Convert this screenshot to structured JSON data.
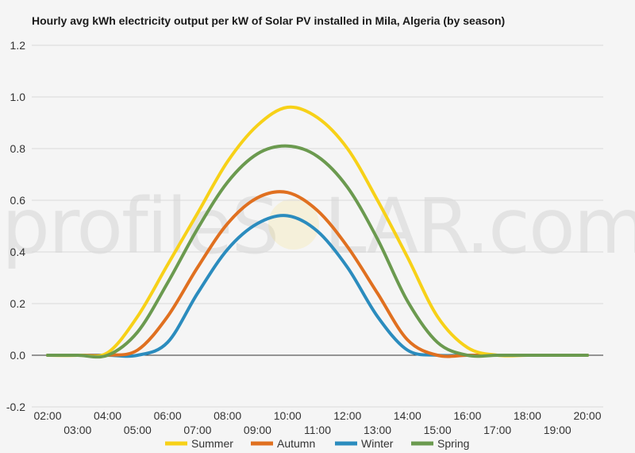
{
  "chart_data": {
    "type": "line",
    "title": "Hourly avg kWh electricity output per kW of Solar PV installed in Mila, Algeria (by season)",
    "xlabel": "",
    "ylabel": "",
    "x": [
      "02:00",
      "03:00",
      "04:00",
      "05:00",
      "06:00",
      "07:00",
      "08:00",
      "09:00",
      "10:00",
      "11:00",
      "12:00",
      "13:00",
      "14:00",
      "15:00",
      "16:00",
      "17:00",
      "18:00",
      "19:00",
      "20:00"
    ],
    "ylim": [
      -0.2,
      1.2
    ],
    "yticks": [
      "-0.2",
      "0.0",
      "0.2",
      "0.4",
      "0.6",
      "0.8",
      "1.0",
      "1.2"
    ],
    "grid": true,
    "legend_position": "bottom",
    "series": [
      {
        "name": "Summer",
        "color": "#f7d118",
        "values": [
          0,
          0,
          0.01,
          0.15,
          0.35,
          0.55,
          0.75,
          0.89,
          0.96,
          0.92,
          0.8,
          0.6,
          0.38,
          0.15,
          0.03,
          0,
          0,
          0,
          0
        ]
      },
      {
        "name": "Autumn",
        "color": "#e07020",
        "values": [
          0,
          0,
          0,
          0.02,
          0.15,
          0.34,
          0.51,
          0.61,
          0.63,
          0.56,
          0.42,
          0.24,
          0.06,
          0,
          0,
          0,
          0,
          0,
          0
        ]
      },
      {
        "name": "Winter",
        "color": "#2b8cbe",
        "values": [
          0,
          0,
          0,
          0,
          0.05,
          0.24,
          0.41,
          0.51,
          0.54,
          0.48,
          0.34,
          0.15,
          0.02,
          0,
          0,
          0,
          0,
          0,
          0
        ]
      },
      {
        "name": "Spring",
        "color": "#6b9a4f",
        "values": [
          0,
          0,
          0,
          0.09,
          0.28,
          0.49,
          0.67,
          0.78,
          0.81,
          0.77,
          0.65,
          0.45,
          0.21,
          0.05,
          0,
          0,
          0,
          0,
          0
        ]
      }
    ]
  },
  "watermark": {
    "text_left": "profileS",
    "text_right": "LAR.com"
  }
}
